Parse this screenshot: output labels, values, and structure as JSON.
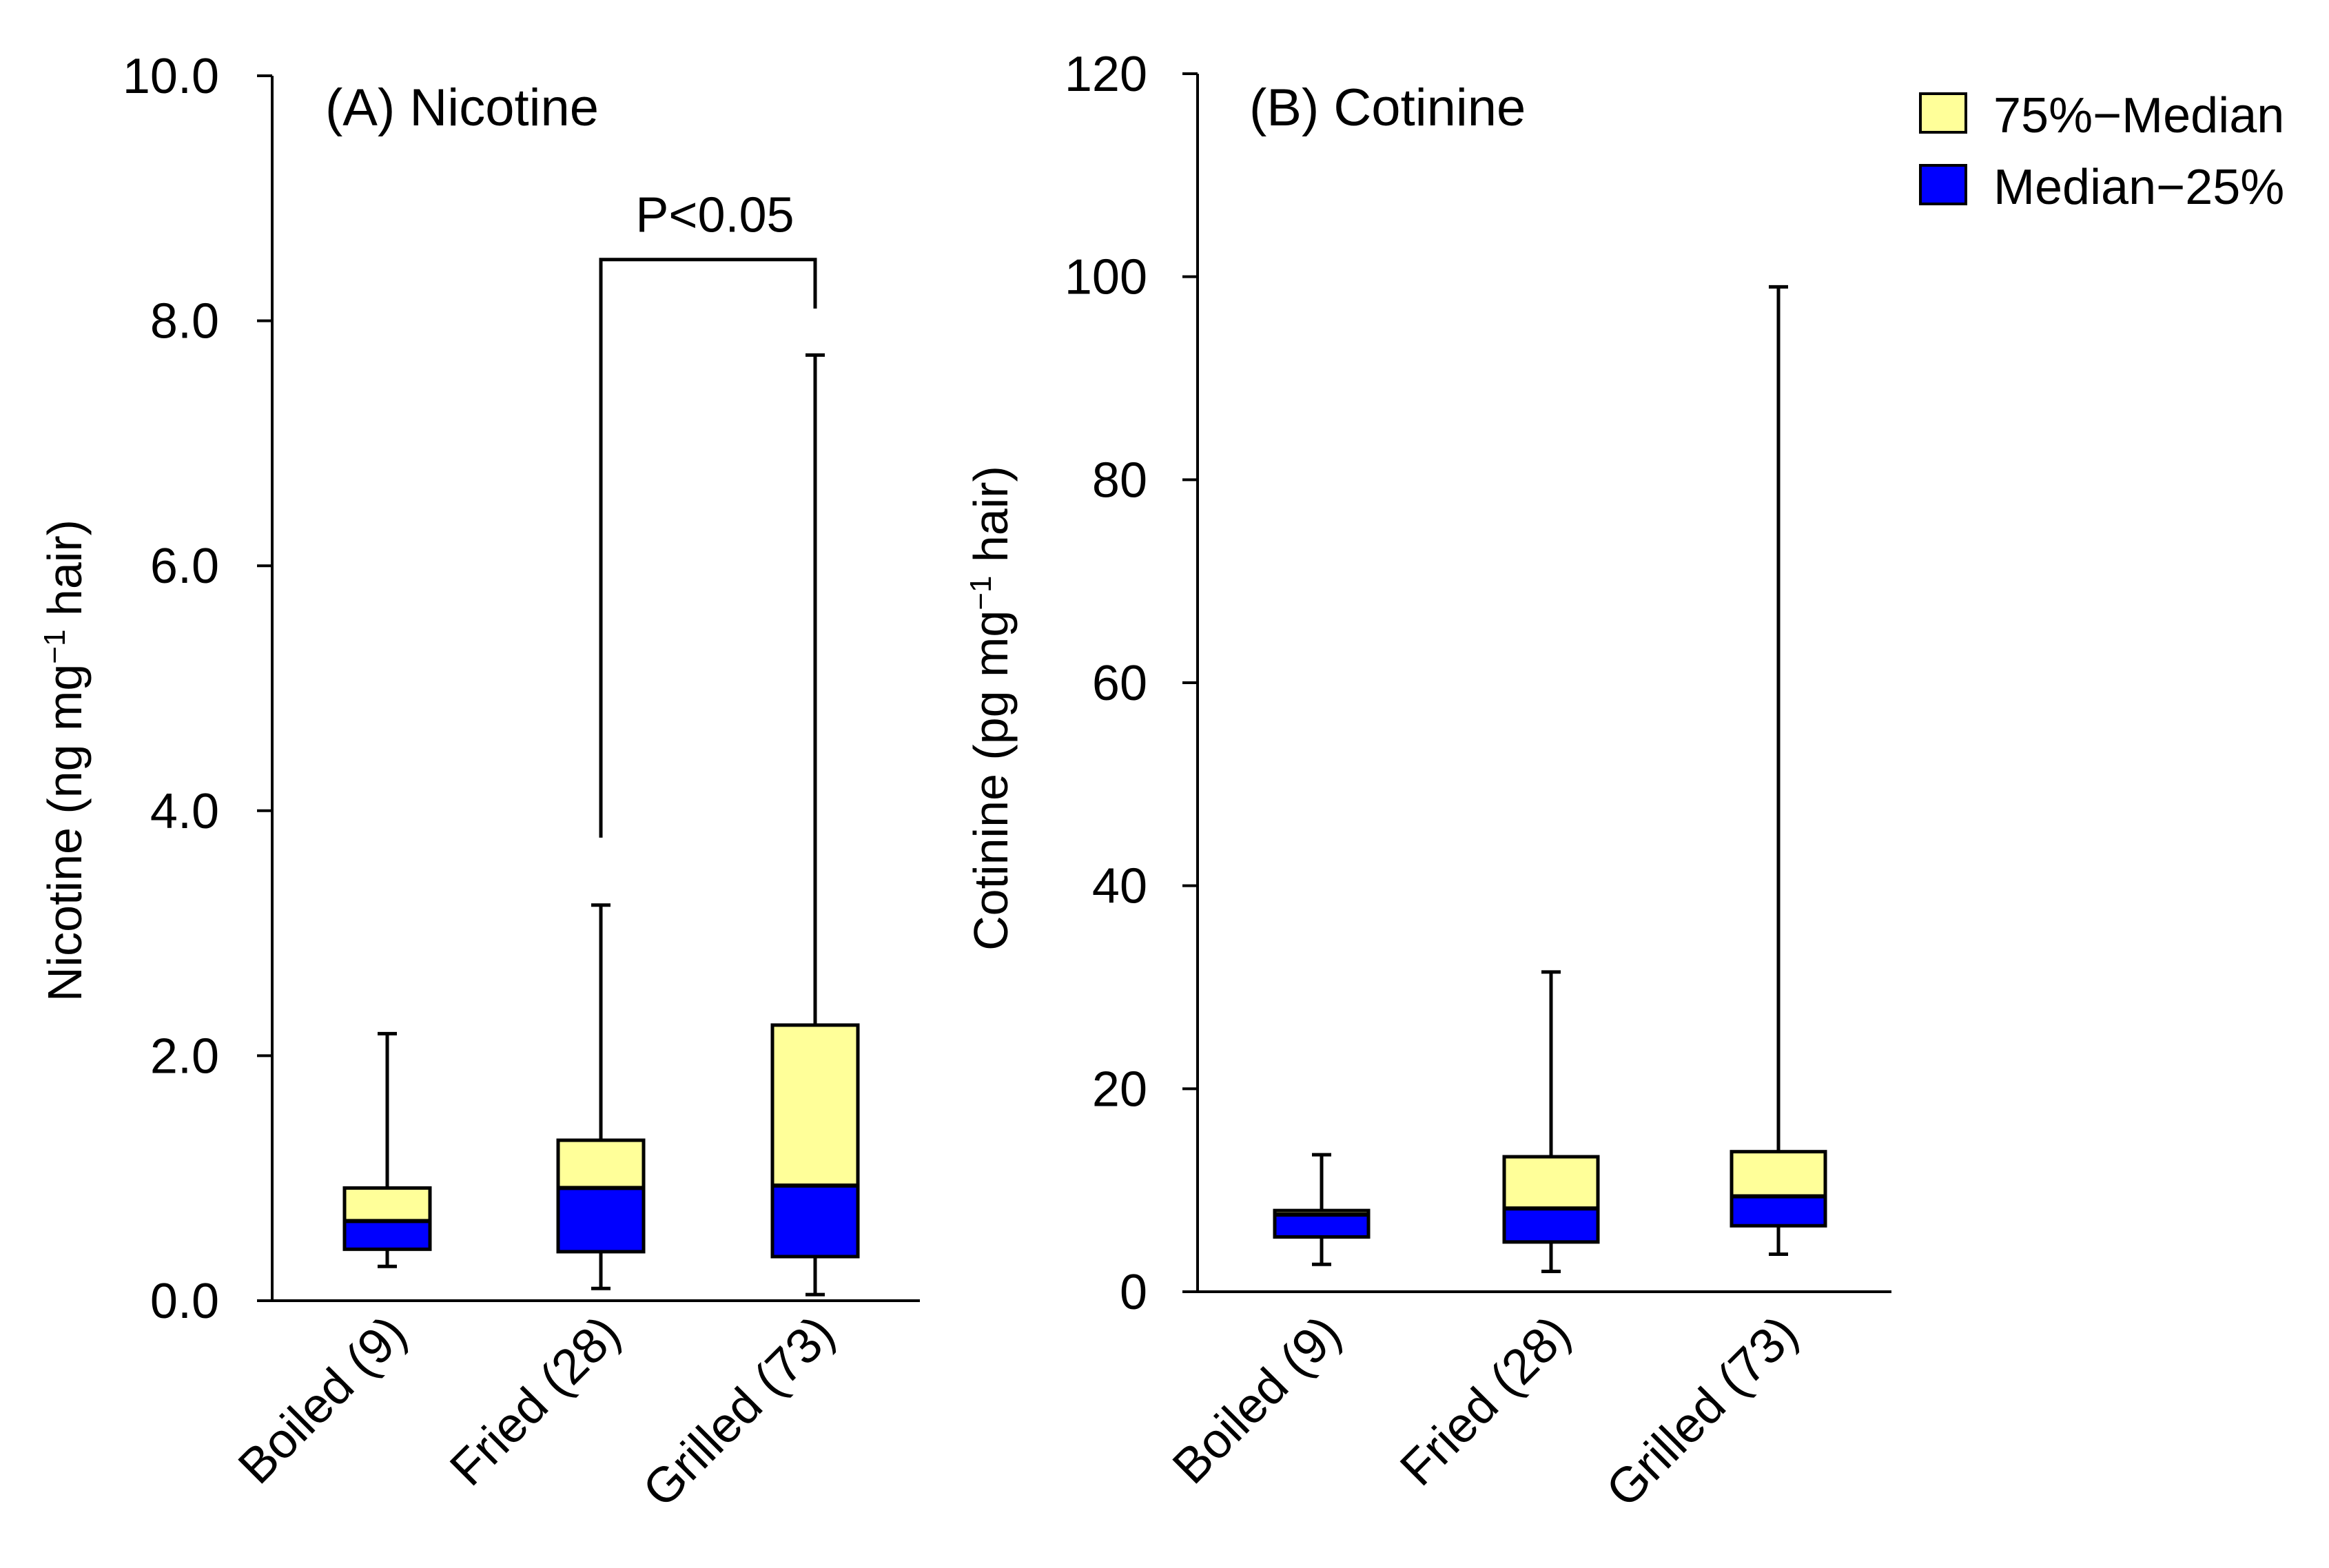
{
  "colors": {
    "upper_box": "#ffff99",
    "lower_box": "#0000ff",
    "line": "#000000",
    "background": "#ffffff"
  },
  "legend": {
    "upper_label": "75%−Median",
    "lower_label": "Median−25%"
  },
  "chart_data": [
    {
      "type": "box",
      "title": "(A) Nicotine",
      "xlabel": "",
      "ylabel_main": "Nicotine (ng mg",
      "ylabel_sup": "−1",
      "ylabel_end": " hair)",
      "ylim": [
        0,
        10
      ],
      "yticks": [
        0,
        2,
        4,
        6,
        8,
        10
      ],
      "ytick_labels": [
        "0.0",
        "2.0",
        "4.0",
        "6.0",
        "8.0",
        "10.0"
      ],
      "categories": [
        "Boiled (9)",
        "Fried (28)",
        "Grilled (73)"
      ],
      "boxes": [
        {
          "min": 0.28,
          "q1": 0.42,
          "median": 0.65,
          "q3": 0.92,
          "max": 2.18
        },
        {
          "min": 0.1,
          "q1": 0.4,
          "median": 0.92,
          "q3": 1.31,
          "max": 3.23
        },
        {
          "min": 0.05,
          "q1": 0.36,
          "median": 0.94,
          "q3": 2.25,
          "max": 7.72
        }
      ],
      "significance": {
        "label": "P<0.05",
        "from_category": 1,
        "to_category": 2,
        "bar_value": 8.5,
        "left_foot": 3.78,
        "right_foot": 8.1
      }
    },
    {
      "type": "box",
      "title": "(B) Cotinine",
      "xlabel": "",
      "ylabel_main": "Cotinine (pg mg",
      "ylabel_sup": "−1",
      "ylabel_end": " hair)",
      "ylim": [
        0,
        120
      ],
      "yticks": [
        0,
        20,
        40,
        60,
        80,
        100,
        120
      ],
      "ytick_labels": [
        "0",
        "20",
        "40",
        "60",
        "80",
        "100",
        "120"
      ],
      "categories": [
        "Boiled (9)",
        "Fried (28)",
        "Grilled (73)"
      ],
      "boxes": [
        {
          "min": 2.7,
          "q1": 5.4,
          "median": 7.6,
          "q3": 8.0,
          "max": 13.5
        },
        {
          "min": 2.0,
          "q1": 4.9,
          "median": 8.2,
          "q3": 13.3,
          "max": 31.5
        },
        {
          "min": 3.7,
          "q1": 6.5,
          "median": 9.4,
          "q3": 13.8,
          "max": 99.0
        }
      ]
    }
  ]
}
